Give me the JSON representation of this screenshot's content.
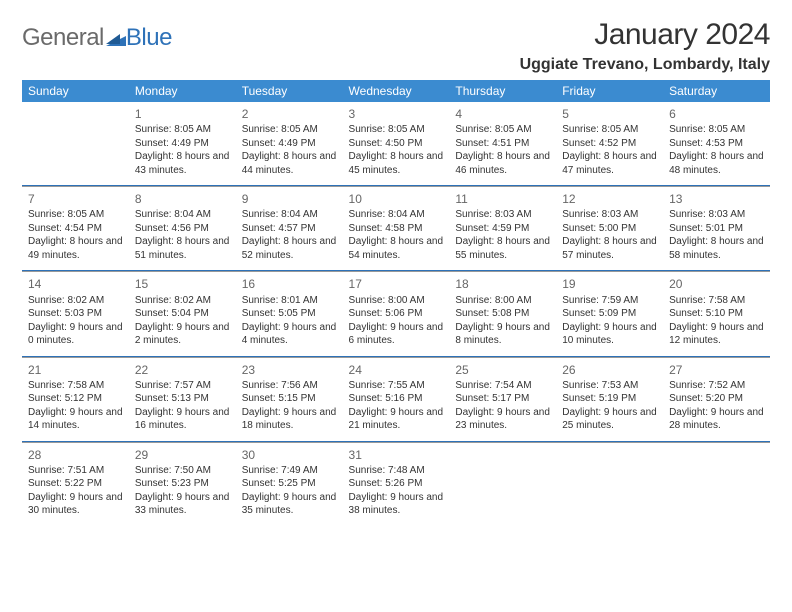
{
  "brand": {
    "part1": "General",
    "part2": "Blue"
  },
  "title": "January 2024",
  "location": "Uggiate Trevano, Lombardy, Italy",
  "colors": {
    "header_bg": "#3b8bd0",
    "header_fg": "#ffffff",
    "rule": "#2e72b8",
    "text": "#333333",
    "muted": "#6a6a6a"
  },
  "weekdays": [
    "Sunday",
    "Monday",
    "Tuesday",
    "Wednesday",
    "Thursday",
    "Friday",
    "Saturday"
  ],
  "weeks": [
    [
      null,
      {
        "n": "1",
        "sr": "Sunrise: 8:05 AM",
        "ss": "Sunset: 4:49 PM",
        "dl": "Daylight: 8 hours and 43 minutes."
      },
      {
        "n": "2",
        "sr": "Sunrise: 8:05 AM",
        "ss": "Sunset: 4:49 PM",
        "dl": "Daylight: 8 hours and 44 minutes."
      },
      {
        "n": "3",
        "sr": "Sunrise: 8:05 AM",
        "ss": "Sunset: 4:50 PM",
        "dl": "Daylight: 8 hours and 45 minutes."
      },
      {
        "n": "4",
        "sr": "Sunrise: 8:05 AM",
        "ss": "Sunset: 4:51 PM",
        "dl": "Daylight: 8 hours and 46 minutes."
      },
      {
        "n": "5",
        "sr": "Sunrise: 8:05 AM",
        "ss": "Sunset: 4:52 PM",
        "dl": "Daylight: 8 hours and 47 minutes."
      },
      {
        "n": "6",
        "sr": "Sunrise: 8:05 AM",
        "ss": "Sunset: 4:53 PM",
        "dl": "Daylight: 8 hours and 48 minutes."
      }
    ],
    [
      {
        "n": "7",
        "sr": "Sunrise: 8:05 AM",
        "ss": "Sunset: 4:54 PM",
        "dl": "Daylight: 8 hours and 49 minutes."
      },
      {
        "n": "8",
        "sr": "Sunrise: 8:04 AM",
        "ss": "Sunset: 4:56 PM",
        "dl": "Daylight: 8 hours and 51 minutes."
      },
      {
        "n": "9",
        "sr": "Sunrise: 8:04 AM",
        "ss": "Sunset: 4:57 PM",
        "dl": "Daylight: 8 hours and 52 minutes."
      },
      {
        "n": "10",
        "sr": "Sunrise: 8:04 AM",
        "ss": "Sunset: 4:58 PM",
        "dl": "Daylight: 8 hours and 54 minutes."
      },
      {
        "n": "11",
        "sr": "Sunrise: 8:03 AM",
        "ss": "Sunset: 4:59 PM",
        "dl": "Daylight: 8 hours and 55 minutes."
      },
      {
        "n": "12",
        "sr": "Sunrise: 8:03 AM",
        "ss": "Sunset: 5:00 PM",
        "dl": "Daylight: 8 hours and 57 minutes."
      },
      {
        "n": "13",
        "sr": "Sunrise: 8:03 AM",
        "ss": "Sunset: 5:01 PM",
        "dl": "Daylight: 8 hours and 58 minutes."
      }
    ],
    [
      {
        "n": "14",
        "sr": "Sunrise: 8:02 AM",
        "ss": "Sunset: 5:03 PM",
        "dl": "Daylight: 9 hours and 0 minutes."
      },
      {
        "n": "15",
        "sr": "Sunrise: 8:02 AM",
        "ss": "Sunset: 5:04 PM",
        "dl": "Daylight: 9 hours and 2 minutes."
      },
      {
        "n": "16",
        "sr": "Sunrise: 8:01 AM",
        "ss": "Sunset: 5:05 PM",
        "dl": "Daylight: 9 hours and 4 minutes."
      },
      {
        "n": "17",
        "sr": "Sunrise: 8:00 AM",
        "ss": "Sunset: 5:06 PM",
        "dl": "Daylight: 9 hours and 6 minutes."
      },
      {
        "n": "18",
        "sr": "Sunrise: 8:00 AM",
        "ss": "Sunset: 5:08 PM",
        "dl": "Daylight: 9 hours and 8 minutes."
      },
      {
        "n": "19",
        "sr": "Sunrise: 7:59 AM",
        "ss": "Sunset: 5:09 PM",
        "dl": "Daylight: 9 hours and 10 minutes."
      },
      {
        "n": "20",
        "sr": "Sunrise: 7:58 AM",
        "ss": "Sunset: 5:10 PM",
        "dl": "Daylight: 9 hours and 12 minutes."
      }
    ],
    [
      {
        "n": "21",
        "sr": "Sunrise: 7:58 AM",
        "ss": "Sunset: 5:12 PM",
        "dl": "Daylight: 9 hours and 14 minutes."
      },
      {
        "n": "22",
        "sr": "Sunrise: 7:57 AM",
        "ss": "Sunset: 5:13 PM",
        "dl": "Daylight: 9 hours and 16 minutes."
      },
      {
        "n": "23",
        "sr": "Sunrise: 7:56 AM",
        "ss": "Sunset: 5:15 PM",
        "dl": "Daylight: 9 hours and 18 minutes."
      },
      {
        "n": "24",
        "sr": "Sunrise: 7:55 AM",
        "ss": "Sunset: 5:16 PM",
        "dl": "Daylight: 9 hours and 21 minutes."
      },
      {
        "n": "25",
        "sr": "Sunrise: 7:54 AM",
        "ss": "Sunset: 5:17 PM",
        "dl": "Daylight: 9 hours and 23 minutes."
      },
      {
        "n": "26",
        "sr": "Sunrise: 7:53 AM",
        "ss": "Sunset: 5:19 PM",
        "dl": "Daylight: 9 hours and 25 minutes."
      },
      {
        "n": "27",
        "sr": "Sunrise: 7:52 AM",
        "ss": "Sunset: 5:20 PM",
        "dl": "Daylight: 9 hours and 28 minutes."
      }
    ],
    [
      {
        "n": "28",
        "sr": "Sunrise: 7:51 AM",
        "ss": "Sunset: 5:22 PM",
        "dl": "Daylight: 9 hours and 30 minutes."
      },
      {
        "n": "29",
        "sr": "Sunrise: 7:50 AM",
        "ss": "Sunset: 5:23 PM",
        "dl": "Daylight: 9 hours and 33 minutes."
      },
      {
        "n": "30",
        "sr": "Sunrise: 7:49 AM",
        "ss": "Sunset: 5:25 PM",
        "dl": "Daylight: 9 hours and 35 minutes."
      },
      {
        "n": "31",
        "sr": "Sunrise: 7:48 AM",
        "ss": "Sunset: 5:26 PM",
        "dl": "Daylight: 9 hours and 38 minutes."
      },
      null,
      null,
      null
    ]
  ]
}
